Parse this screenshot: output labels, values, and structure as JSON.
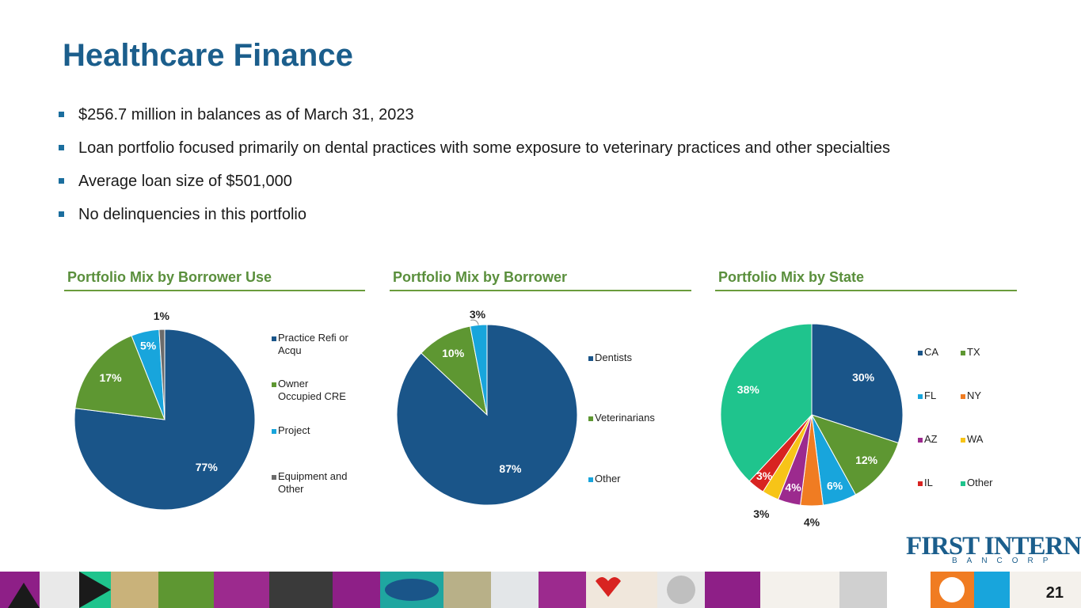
{
  "title": "Healthcare Finance",
  "bullets": [
    "$256.7 million in balances as of March 31, 2023",
    "Loan portfolio focused primarily on dental practices with some exposure to veterinary practices and other specialties",
    "Average loan size of $501,000",
    "No delinquencies in this portfolio"
  ],
  "colors": {
    "title": "#1b5e8c",
    "section_title": "#5a8f3c",
    "navy": "#1a5589",
    "green": "#5e9732",
    "cyan": "#18a5dc",
    "gray": "#6b6b6b",
    "orange": "#f07c22",
    "purple": "#9c2a8e",
    "yellow": "#f7c418",
    "red": "#d82321",
    "teal": "#1fc48d"
  },
  "chart_data": [
    {
      "type": "pie",
      "title": "Portfolio Mix by Borrower Use",
      "categories": [
        "Practice Refi or Acqu",
        "Owner Occupied CRE",
        "Project",
        "Equipment and Other"
      ],
      "legend_lines": [
        [
          "Practice Refi or",
          "Acqu"
        ],
        [
          "Owner",
          "Occupied CRE"
        ],
        [
          "Project"
        ],
        [
          "Equipment and",
          "Other"
        ]
      ],
      "values": [
        77,
        17,
        5,
        1
      ],
      "labels": [
        "77%",
        "17%",
        "5%",
        "1%"
      ],
      "colors": [
        "#1a5589",
        "#5e9732",
        "#18a5dc",
        "#6b6b6b"
      ],
      "legend_position": "right"
    },
    {
      "type": "pie",
      "title": "Portfolio Mix by Borrower",
      "categories": [
        "Dentists",
        "Veterinarians",
        "Other"
      ],
      "values": [
        87,
        10,
        3
      ],
      "labels": [
        "87%",
        "10%",
        "3%"
      ],
      "colors": [
        "#1a5589",
        "#5e9732",
        "#18a5dc"
      ],
      "legend_position": "right"
    },
    {
      "type": "pie",
      "title": "Portfolio Mix by State",
      "categories": [
        "CA",
        "TX",
        "FL",
        "NY",
        "AZ",
        "WA",
        "IL",
        "Other"
      ],
      "values": [
        30,
        12,
        6,
        4,
        4,
        3,
        3,
        38
      ],
      "labels": [
        "30%",
        "12%",
        "6%",
        "4%",
        "4%",
        "3%",
        "3%",
        "38%"
      ],
      "colors": [
        "#1a5589",
        "#5e9732",
        "#18a5dc",
        "#f07c22",
        "#9c2a8e",
        "#f7c418",
        "#d82321",
        "#1fc48d"
      ],
      "legend_position": "right"
    }
  ],
  "logo": {
    "main": "FIRST INTERNET",
    "sub": "BANCORP"
  },
  "page_number": "21"
}
